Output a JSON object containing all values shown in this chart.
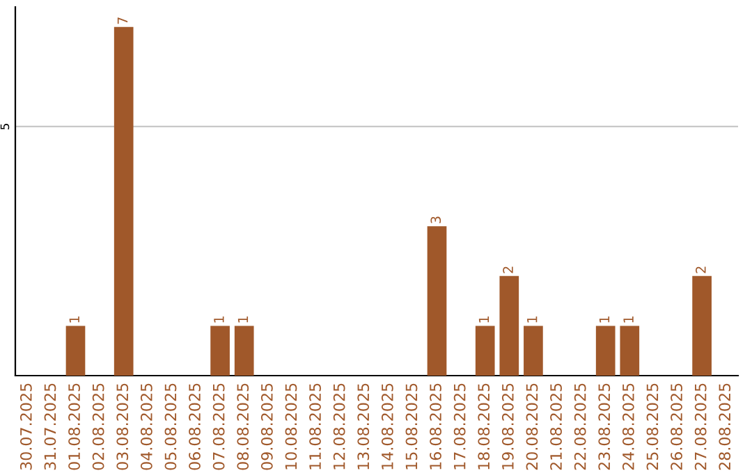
{
  "chart_data": {
    "type": "bar",
    "categories": [
      "30.07.2025",
      "31.07.2025",
      "01.08.2025",
      "02.08.2025",
      "03.08.2025",
      "04.08.2025",
      "05.08.2025",
      "06.08.2025",
      "07.08.2025",
      "08.08.2025",
      "09.08.2025",
      "10.08.2025",
      "11.08.2025",
      "12.08.2025",
      "13.08.2025",
      "14.08.2025",
      "15.08.2025",
      "16.08.2025",
      "17.08.2025",
      "18.08.2025",
      "19.08.2025",
      "20.08.2025",
      "21.08.2025",
      "22.08.2025",
      "23.08.2025",
      "24.08.2025",
      "25.08.2025",
      "26.08.2025",
      "27.08.2025",
      "28.08.2025"
    ],
    "values": [
      0,
      0,
      1,
      0,
      7,
      0,
      0,
      0,
      1,
      1,
      0,
      0,
      0,
      0,
      0,
      0,
      0,
      3,
      0,
      1,
      2,
      1,
      0,
      0,
      1,
      1,
      0,
      0,
      2,
      0
    ],
    "value_labels": [
      null,
      null,
      "1",
      null,
      "7",
      null,
      null,
      null,
      "1",
      "1",
      null,
      null,
      null,
      null,
      null,
      null,
      null,
      "3",
      null,
      "1",
      "2",
      "1",
      null,
      null,
      "1",
      "1",
      null,
      null,
      "2",
      null
    ],
    "color": "#a0582a",
    "ylim": [
      0,
      7.4
    ],
    "yticks": [
      5
    ],
    "grid": "y",
    "legend": false
  }
}
